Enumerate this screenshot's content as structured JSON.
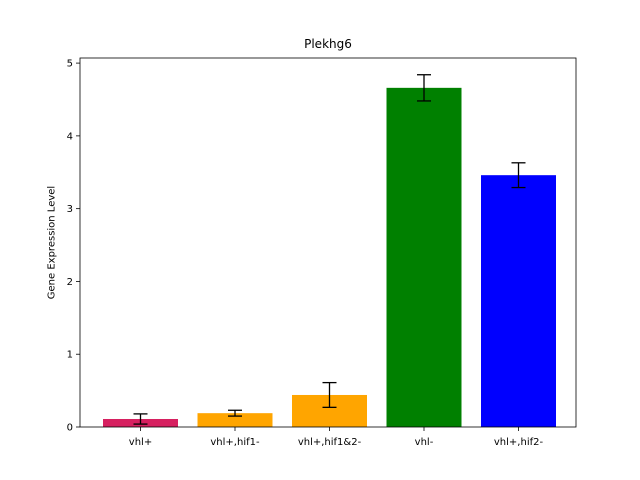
{
  "chart_data": {
    "type": "bar",
    "title": "Plekhg6",
    "xlabel": "",
    "ylabel": "Gene Expression Level",
    "categories": [
      "vhl+",
      "vhl+,hif1-",
      "vhl+,hif1&2-",
      "vhl-",
      "vhl+,hif2-"
    ],
    "values": [
      0.11,
      0.19,
      0.44,
      4.66,
      3.46
    ],
    "errors": [
      0.07,
      0.04,
      0.17,
      0.18,
      0.17
    ],
    "colors": [
      "#d62060",
      "#ffa500",
      "#ffa500",
      "#008000",
      "#0000ff"
    ],
    "ylim": [
      0,
      5.07
    ],
    "yticks": [
      0,
      1,
      2,
      3,
      4,
      5
    ],
    "ytick_labels": [
      "0",
      "1",
      "2",
      "3",
      "4",
      "5"
    ],
    "grid": false
  }
}
